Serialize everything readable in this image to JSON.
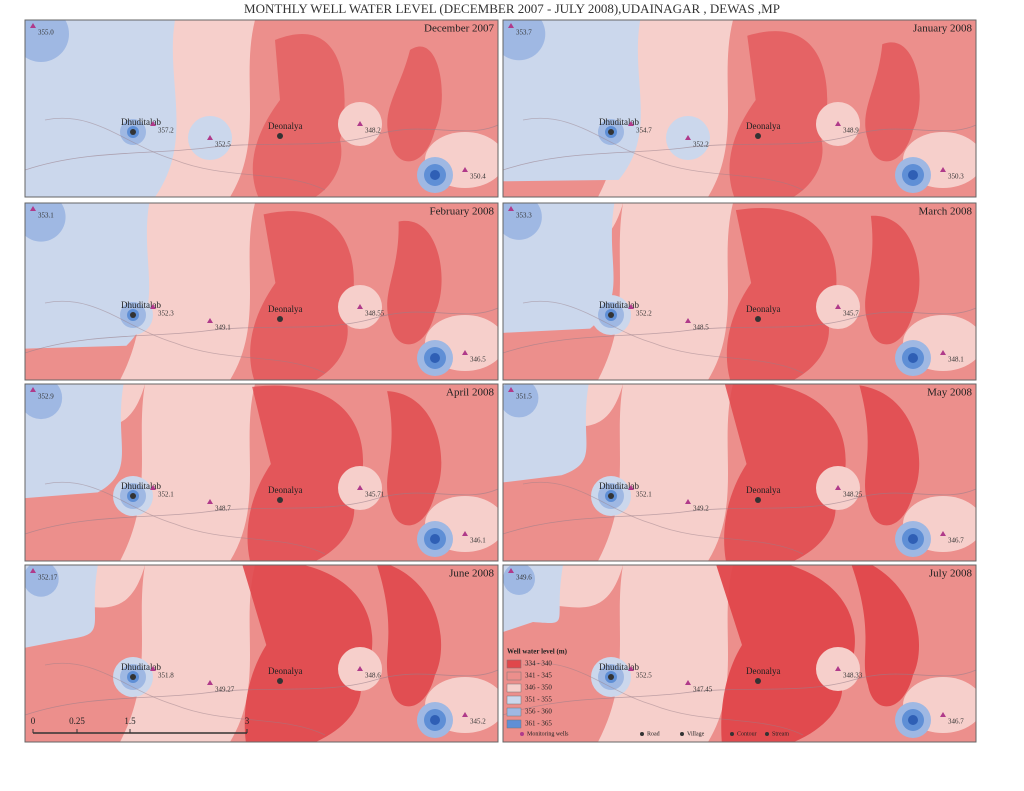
{
  "title": "MONTHLY WELL WATER LEVEL (DECEMBER 2007 - JULY 2008),UDAINAGAR , DEWAS ,MP",
  "villages": [
    "Dhuditalab",
    "Deonalya"
  ],
  "panels": [
    {
      "month": "December 2007",
      "wells": [
        "355.0",
        "357.2",
        "352.5",
        "348.2",
        "350.4"
      ]
    },
    {
      "month": "January 2008",
      "wells": [
        "353.7",
        "354.7",
        "352.2",
        "348.9",
        "350.3"
      ]
    },
    {
      "month": "February 2008",
      "wells": [
        "353.1",
        "352.3",
        "349.1",
        "348.55",
        "346.5"
      ]
    },
    {
      "month": "March 2008",
      "wells": [
        "353.3",
        "352.2",
        "348.5",
        "345.7",
        "348.1"
      ]
    },
    {
      "month": "April 2008",
      "wells": [
        "352.9",
        "352.1",
        "348.7",
        "345.71",
        "346.1"
      ]
    },
    {
      "month": "May 2008",
      "wells": [
        "351.5",
        "352.1",
        "349.2",
        "348.25",
        "346.7"
      ]
    },
    {
      "month": "June 2008",
      "wells": [
        "352.17",
        "351.8",
        "349.27",
        "348.6",
        "345.2"
      ]
    },
    {
      "month": "July 2008",
      "wells": [
        "349.6",
        "352.5",
        "347.45",
        "348.33",
        "346.7"
      ]
    }
  ],
  "legend": {
    "title": "Well water level (m)",
    "classes": [
      {
        "label": "334 - 340",
        "color": "#e0474b"
      },
      {
        "label": "341 - 345",
        "color": "#ec8f8c"
      },
      {
        "label": "346 - 350",
        "color": "#f6cfcb"
      },
      {
        "label": "351 - 355",
        "color": "#cbd7ec"
      },
      {
        "label": "356 - 360",
        "color": "#9fb8e3"
      },
      {
        "label": "361 - 365",
        "color": "#5f8fd6"
      }
    ],
    "symbols": [
      "Monitoring wells",
      "Road",
      "Village",
      "Contour",
      "Stream"
    ]
  },
  "scale": [
    "0",
    "0.25",
    "1.5",
    "3"
  ]
}
